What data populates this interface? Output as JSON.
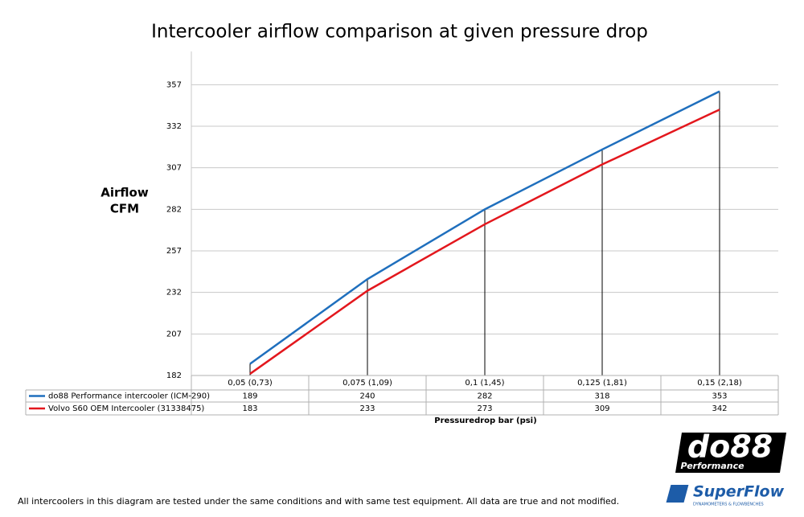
{
  "chart_data": {
    "type": "line",
    "title": "Intercooler airflow comparison at given pressure drop",
    "y_label": [
      "Airflow",
      "CFM"
    ],
    "x_label": "Pressuredrop bar (psi)",
    "categories": [
      "0,05 (0,73)",
      "0,075 (1,09)",
      "0,1 (1,45)",
      "0,125 (1,81)",
      "0,15 (2,18)"
    ],
    "series": [
      {
        "name": "do88 Performance intercooler (ICM-290)",
        "color": "#1f6fbd",
        "values": [
          189,
          240,
          282,
          318,
          353
        ]
      },
      {
        "name": "Volvo S60 OEM Intercooler (31338475)",
        "color": "#e3171d",
        "values": [
          183,
          233,
          273,
          309,
          342
        ]
      }
    ],
    "ylim": [
      182,
      377
    ],
    "yticks": [
      182,
      207,
      232,
      257,
      282,
      307,
      332,
      357
    ],
    "grid": true,
    "drop_lines": true,
    "data_table": true
  },
  "footer": {
    "note": "All intercoolers in this diagram are tested under the same conditions and with same test equipment. All data are true and not modified.",
    "logo1": "do88",
    "logo1_sub": "Performance",
    "logo2": "SuperFlow",
    "logo2_sub": "DYNAMOMETERS & FLOWBENCHES"
  }
}
